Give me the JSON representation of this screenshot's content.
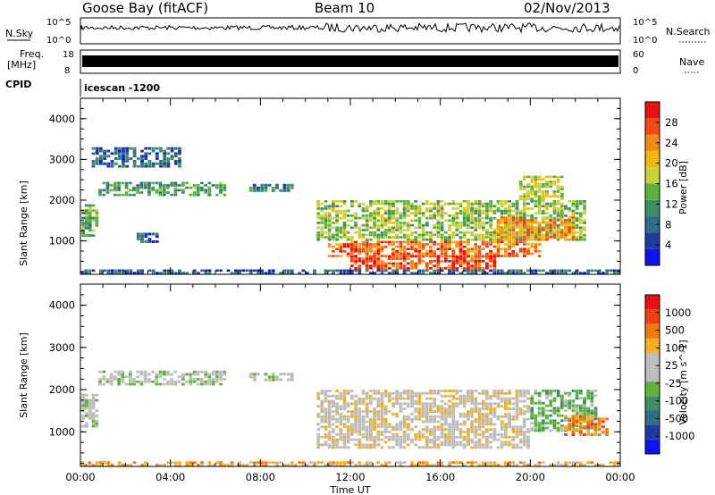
{
  "header": {
    "site": "Goose Bay (fitACF)",
    "beam": "Beam 10",
    "date": "02/Nov/2013"
  },
  "strips": {
    "nsky_label": "N.Sky",
    "nsearch_label": "N.Search",
    "nsky_ticks": [
      "10^5",
      "10^0"
    ],
    "nsearch_ticks": [
      "10^5",
      "10^0"
    ],
    "freq_label_line1": "Freq.",
    "freq_label_line2": "[MHz]",
    "freq_ticks": [
      "18",
      "8"
    ],
    "nave_label": "Nave",
    "nave_ticks": [
      "60",
      "0"
    ],
    "cpid_label": "CPID",
    "cpid_text": "icescan -1200"
  },
  "colors": {
    "power": [
      "#0a14f0",
      "#1e3ca0",
      "#2f6e8a",
      "#3b8f63",
      "#5cb33b",
      "#c8d23c",
      "#f2b80a",
      "#f08a10",
      "#f04a10",
      "#e81010"
    ],
    "velocity": [
      "#0a14f0",
      "#1e3ca0",
      "#2f6e8a",
      "#3b8f63",
      "#5cb33b",
      "#bdbdbd",
      "#bdbdbd",
      "#f0b020",
      "#f07a10",
      "#f04010",
      "#e81010"
    ]
  },
  "chart_data": [
    {
      "type": "heatmap",
      "name": "power",
      "ylabel": "Slant Range [km]",
      "ylim": [
        180,
        4500
      ],
      "yticks": [
        1000,
        2000,
        3000,
        4000
      ],
      "colorbar_label": "Power [dB]",
      "colorbar_ticks": [
        "4",
        "8",
        "12",
        "16",
        "20",
        "24",
        "28"
      ],
      "clim": [
        0,
        32
      ],
      "regions": [
        {
          "t0": 0.05,
          "t1": 0.8,
          "r0": 1100,
          "r1": 1900,
          "level": 12
        },
        {
          "t0": 0.8,
          "t1": 6.5,
          "r0": 2100,
          "r1": 2450,
          "level": 10
        },
        {
          "t0": 0.5,
          "t1": 4.5,
          "r0": 2800,
          "r1": 3300,
          "level": 6
        },
        {
          "t0": 2.5,
          "t1": 3.5,
          "r0": 950,
          "r1": 1200,
          "level": 5
        },
        {
          "t0": 7.5,
          "t1": 9.5,
          "r0": 2200,
          "r1": 2400,
          "level": 8
        },
        {
          "t0": 10.5,
          "t1": 22.5,
          "r0": 1000,
          "r1": 2000,
          "level": 14
        },
        {
          "t0": 11.0,
          "t1": 20.5,
          "r0": 600,
          "r1": 1000,
          "level": 24
        },
        {
          "t0": 12.0,
          "t1": 18.5,
          "r0": 300,
          "r1": 650,
          "level": 26
        },
        {
          "t0": 18.5,
          "t1": 22.0,
          "r0": 1000,
          "r1": 1600,
          "level": 22
        },
        {
          "t0": 19.5,
          "t1": 21.5,
          "r0": 2000,
          "r1": 2600,
          "level": 16
        },
        {
          "t0": 0.0,
          "t1": 24.0,
          "r0": 180,
          "r1": 300,
          "level": 5
        }
      ]
    },
    {
      "type": "heatmap",
      "name": "velocity",
      "ylabel": "Slant Range [km]",
      "ylim": [
        180,
        4500
      ],
      "yticks": [
        1000,
        2000,
        3000,
        4000
      ],
      "xlabel": "Time UT",
      "xticks": [
        "00:00",
        "04:00",
        "08:00",
        "12:00",
        "16:00",
        "20:00",
        "00:00"
      ],
      "xlim": [
        0,
        24
      ],
      "colorbar_label": "Velocity [m s^-1]",
      "colorbar_ticks": [
        "1000",
        "500",
        "100",
        "25",
        "-25",
        "-100",
        "-500",
        "-1000"
      ],
      "regions": [
        {
          "t0": 0.05,
          "t1": 0.8,
          "r0": 1100,
          "r1": 1900,
          "level": 5
        },
        {
          "t0": 0.8,
          "t1": 6.5,
          "r0": 2100,
          "r1": 2450,
          "level": 5
        },
        {
          "t0": 7.5,
          "t1": 9.5,
          "r0": 2200,
          "r1": 2400,
          "level": 5
        },
        {
          "t0": 10.5,
          "t1": 20.0,
          "r0": 600,
          "r1": 2000,
          "level": 6
        },
        {
          "t0": 20.0,
          "t1": 23.0,
          "r0": 1000,
          "r1": 2000,
          "level": 4
        },
        {
          "t0": 21.5,
          "t1": 23.5,
          "r0": 900,
          "r1": 1400,
          "level": 8
        },
        {
          "t0": 0.0,
          "t1": 24.0,
          "r0": 180,
          "r1": 300,
          "level": 7
        }
      ]
    }
  ]
}
